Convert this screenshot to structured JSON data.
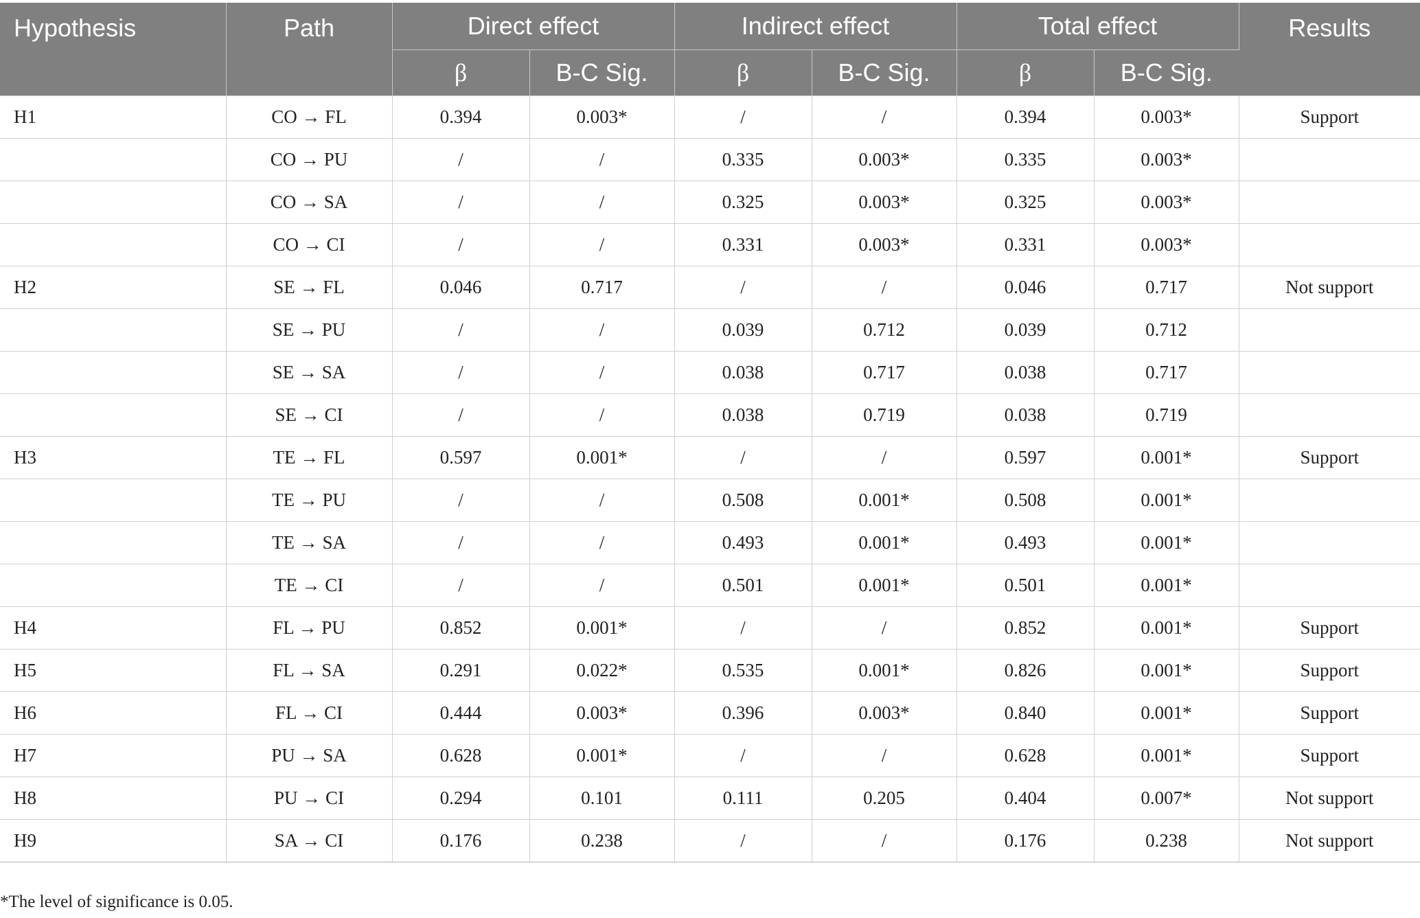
{
  "headers": {
    "hypothesis": "Hypothesis",
    "path": "Path",
    "direct": "Direct effect",
    "indirect": "Indirect effect",
    "total": "Total effect",
    "results": "Results",
    "beta": "β",
    "sig": "B-C Sig."
  },
  "rows": [
    {
      "hyp": "H1",
      "path": "CO → FL",
      "d_b": "0.394",
      "d_s": "0.003*",
      "i_b": "/",
      "i_s": "/",
      "t_b": "0.394",
      "t_s": "0.003*",
      "res": "Support"
    },
    {
      "hyp": "",
      "path": "CO → PU",
      "d_b": "/",
      "d_s": "/",
      "i_b": "0.335",
      "i_s": "0.003*",
      "t_b": "0.335",
      "t_s": "0.003*",
      "res": ""
    },
    {
      "hyp": "",
      "path": "CO → SA",
      "d_b": "/",
      "d_s": "/",
      "i_b": "0.325",
      "i_s": "0.003*",
      "t_b": "0.325",
      "t_s": "0.003*",
      "res": ""
    },
    {
      "hyp": "",
      "path": "CO → CI",
      "d_b": "/",
      "d_s": "/",
      "i_b": "0.331",
      "i_s": "0.003*",
      "t_b": "0.331",
      "t_s": "0.003*",
      "res": ""
    },
    {
      "hyp": "H2",
      "path": "SE → FL",
      "d_b": "0.046",
      "d_s": "0.717",
      "i_b": "/",
      "i_s": "/",
      "t_b": "0.046",
      "t_s": "0.717",
      "res": "Not support"
    },
    {
      "hyp": "",
      "path": "SE → PU",
      "d_b": "/",
      "d_s": "/",
      "i_b": "0.039",
      "i_s": "0.712",
      "t_b": "0.039",
      "t_s": "0.712",
      "res": ""
    },
    {
      "hyp": "",
      "path": "SE → SA",
      "d_b": "/",
      "d_s": "/",
      "i_b": "0.038",
      "i_s": "0.717",
      "t_b": "0.038",
      "t_s": "0.717",
      "res": ""
    },
    {
      "hyp": "",
      "path": "SE → CI",
      "d_b": "/",
      "d_s": "/",
      "i_b": "0.038",
      "i_s": "0.719",
      "t_b": "0.038",
      "t_s": "0.719",
      "res": ""
    },
    {
      "hyp": "H3",
      "path": "TE → FL",
      "d_b": "0.597",
      "d_s": "0.001*",
      "i_b": "/",
      "i_s": "/",
      "t_b": "0.597",
      "t_s": "0.001*",
      "res": "Support"
    },
    {
      "hyp": "",
      "path": "TE → PU",
      "d_b": "/",
      "d_s": "/",
      "i_b": "0.508",
      "i_s": "0.001*",
      "t_b": "0.508",
      "t_s": "0.001*",
      "res": ""
    },
    {
      "hyp": "",
      "path": "TE → SA",
      "d_b": "/",
      "d_s": "/",
      "i_b": "0.493",
      "i_s": "0.001*",
      "t_b": "0.493",
      "t_s": "0.001*",
      "res": ""
    },
    {
      "hyp": "",
      "path": "TE → CI",
      "d_b": "/",
      "d_s": "/",
      "i_b": "0.501",
      "i_s": "0.001*",
      "t_b": "0.501",
      "t_s": "0.001*",
      "res": ""
    },
    {
      "hyp": "H4",
      "path": "FL → PU",
      "d_b": "0.852",
      "d_s": "0.001*",
      "i_b": "/",
      "i_s": "/",
      "t_b": "0.852",
      "t_s": "0.001*",
      "res": "Support"
    },
    {
      "hyp": "H5",
      "path": "FL → SA",
      "d_b": "0.291",
      "d_s": "0.022*",
      "i_b": "0.535",
      "i_s": "0.001*",
      "t_b": "0.826",
      "t_s": "0.001*",
      "res": "Support"
    },
    {
      "hyp": "H6",
      "path": "FL → CI",
      "d_b": "0.444",
      "d_s": "0.003*",
      "i_b": "0.396",
      "i_s": "0.003*",
      "t_b": "0.840",
      "t_s": "0.001*",
      "res": "Support"
    },
    {
      "hyp": "H7",
      "path": "PU → SA",
      "d_b": "0.628",
      "d_s": "0.001*",
      "i_b": "/",
      "i_s": "/",
      "t_b": "0.628",
      "t_s": "0.001*",
      "res": "Support"
    },
    {
      "hyp": "H8",
      "path": "PU → CI",
      "d_b": "0.294",
      "d_s": "0.101",
      "i_b": "0.111",
      "i_s": "0.205",
      "t_b": "0.404",
      "t_s": "0.007*",
      "res": "Not support"
    },
    {
      "hyp": "H9",
      "path": "SA → CI",
      "d_b": "0.176",
      "d_s": "0.238",
      "i_b": "/",
      "i_s": "/",
      "t_b": "0.176",
      "t_s": "0.238",
      "res": "Not support"
    }
  ],
  "footnote": "*The level of significance is 0.05."
}
